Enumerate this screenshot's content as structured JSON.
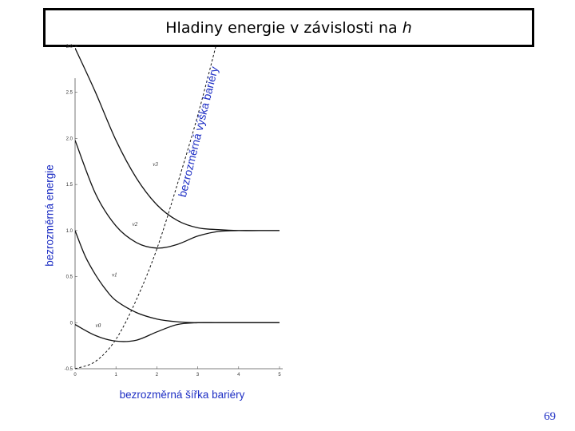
{
  "title": {
    "main": "Hladiny energie v závislosti na",
    "variable": "h"
  },
  "page_number": "69",
  "chart_data": {
    "type": "line",
    "ylabel": "bezrozměrná energie",
    "xlabel": "bezrozměrná šířka bariéry",
    "barrier_label": "bezrozměrná výška bariéry",
    "xlim": [
      0,
      5
    ],
    "ylim": [
      -0.5,
      3.0
    ],
    "x_ticks": [
      "0",
      "1",
      "2",
      "3",
      "4",
      "5"
    ],
    "y_ticks": [
      "-0.5",
      "0",
      "0.5",
      "1.0",
      "1.5",
      "2.0",
      "2.5",
      "3.0"
    ],
    "series": [
      {
        "label": "ν0",
        "x": [
          0,
          0.5,
          1.0,
          1.5,
          2.0,
          2.5,
          3.0,
          3.5,
          4.0,
          4.5,
          5.0
        ],
        "y": [
          -0.02,
          -0.14,
          -0.2,
          -0.19,
          -0.1,
          -0.02,
          0.0,
          0.0,
          0.0,
          0.0,
          0.0
        ]
      },
      {
        "label": "ν1",
        "x": [
          0,
          0.25,
          0.5,
          0.75,
          1.0,
          1.5,
          2.0,
          2.5,
          3.0,
          3.5,
          4.0,
          4.5,
          5.0
        ],
        "y": [
          1.0,
          0.72,
          0.52,
          0.36,
          0.24,
          0.11,
          0.04,
          0.01,
          0.0,
          0.0,
          0.0,
          0.0,
          0.0
        ]
      },
      {
        "label": "ν2",
        "x": [
          0,
          0.5,
          1.0,
          1.5,
          2.0,
          2.5,
          3.0,
          3.5,
          4.0,
          4.5,
          5.0
        ],
        "y": [
          1.98,
          1.4,
          1.05,
          0.87,
          0.81,
          0.85,
          0.94,
          0.99,
          1.0,
          1.0,
          1.0
        ]
      },
      {
        "label": "ν3",
        "x": [
          0,
          0.5,
          1.0,
          1.5,
          2.0,
          2.5,
          3.0,
          3.5,
          4.0,
          4.5,
          5.0
        ],
        "y": [
          2.98,
          2.5,
          1.98,
          1.57,
          1.28,
          1.11,
          1.03,
          1.01,
          1.0,
          1.0,
          1.0
        ]
      }
    ],
    "barrier_curve": {
      "style": "dashed",
      "x": [
        0,
        0.5,
        1.0,
        1.5,
        2.0,
        2.5,
        3.0,
        3.5,
        3.9
      ],
      "y": [
        -0.5,
        -0.42,
        -0.18,
        0.25,
        0.8,
        1.5,
        2.25,
        3.1,
        3.8
      ]
    },
    "grid": false
  }
}
